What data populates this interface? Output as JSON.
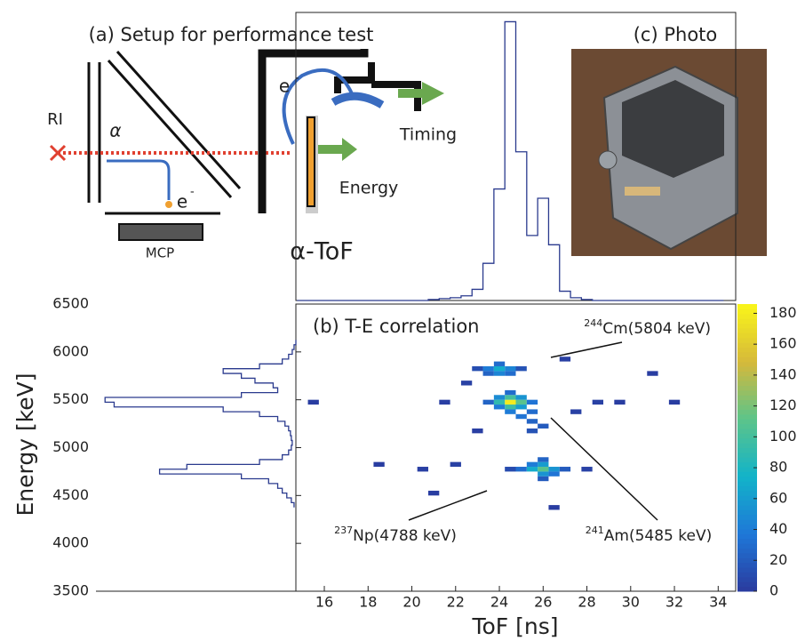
{
  "panel_a": {
    "title": "(a) Setup for performance test",
    "labels": {
      "ri": "RI",
      "alpha": "α",
      "electron_top": "e",
      "electron_top_sup": "-",
      "electron_bottom": "e",
      "electron_bottom_sup": "-",
      "mcp": "MCP",
      "timing": "Timing",
      "energy": "Energy",
      "detector": "α-ToF"
    }
  },
  "panel_c": {
    "title": "(c) Photo"
  },
  "chart_data": {
    "type": "heatmap",
    "title": "(b) T-E correlation",
    "x_label": "ToF [ns]",
    "y_label": "Energy [keV]",
    "xlim": [
      14.7,
      34.8
    ],
    "ylim": [
      3500,
      6500
    ],
    "xticks": [
      16,
      18,
      20,
      22,
      24,
      26,
      28,
      30,
      32,
      34
    ],
    "yticks": [
      3500,
      4000,
      4500,
      5000,
      5500,
      6000,
      6500
    ],
    "colorbar": {
      "zlim": [
        0,
        186
      ],
      "ticks": [
        0,
        20,
        40,
        60,
        80,
        100,
        120,
        140,
        160,
        180
      ],
      "colors": [
        "#2a3a9e",
        "#1f78d8",
        "#12b3c9",
        "#5cc48a",
        "#d6b93a",
        "#f9f51a"
      ]
    },
    "cells": {
      "x": [
        24.5,
        24.0,
        25.0,
        24.5,
        24.5,
        24.0,
        25.0,
        24.0,
        25.0,
        23.5,
        25.5,
        24.5,
        24.5,
        25.5,
        25.5,
        25.0,
        26.0,
        25.5,
        24.0,
        23.5,
        24.5,
        24.0,
        24.0,
        23.5,
        24.5,
        23.0,
        25.0,
        26.0,
        25.5,
        26.5,
        26.0,
        26.0,
        25.5,
        26.5,
        25.0,
        27.0,
        26.0,
        26.0,
        24.5,
        20.5,
        22.0,
        21.5,
        28.5,
        29.5,
        32.0,
        31.0,
        18.5,
        23.0,
        28.0,
        27.5,
        22.5,
        27.0,
        21.0,
        26.5,
        15.5
      ],
      "y": [
        5475,
        5475,
        5475,
        5525,
        5425,
        5525,
        5425,
        5425,
        5525,
        5475,
        5475,
        5575,
        5375,
        5375,
        5275,
        5325,
        5225,
        5175,
        5825,
        5825,
        5825,
        5775,
        5875,
        5775,
        5775,
        5825,
        5825,
        4775,
        4775,
        4775,
        4825,
        4725,
        4825,
        4725,
        4775,
        4775,
        4875,
        4675,
        4775,
        4775,
        4825,
        5475,
        5475,
        5475,
        5475,
        5775,
        4825,
        5175,
        4775,
        5375,
        5675,
        5925,
        4525,
        4375,
        5475
      ],
      "values": [
        180,
        90,
        110,
        100,
        95,
        50,
        60,
        40,
        55,
        25,
        35,
        30,
        40,
        30,
        25,
        35,
        20,
        15,
        70,
        40,
        45,
        45,
        30,
        25,
        30,
        12,
        15,
        110,
        70,
        55,
        60,
        55,
        40,
        35,
        30,
        20,
        25,
        20,
        10,
        3,
        4,
        3,
        4,
        2,
        2,
        2,
        2,
        3,
        5,
        4,
        4,
        3,
        2,
        2,
        2
      ]
    },
    "annotations": [
      {
        "isotope": "244",
        "label": "Cm(5804 keV)"
      },
      {
        "isotope": "241",
        "label": "Am(5485 keV)"
      },
      {
        "isotope": "237",
        "label": "Np(4788 keV)"
      }
    ],
    "tof_projection": {
      "ylim": [
        0,
        310
      ],
      "x": [
        15,
        15.5,
        16,
        16.5,
        17,
        17.5,
        18,
        18.5,
        19,
        19.5,
        20,
        20.5,
        21,
        21.5,
        22,
        22.5,
        23,
        23.5,
        24,
        24.5,
        25,
        25.5,
        26,
        26.5,
        27,
        27.5,
        28,
        28.5,
        29,
        29.5,
        30,
        30.5,
        31,
        31.5,
        32,
        32.5,
        33,
        33.5,
        34
      ],
      "values": [
        0,
        0,
        0,
        0,
        0,
        0,
        0,
        0,
        0,
        0,
        0,
        0,
        1,
        2,
        3,
        5,
        12,
        40,
        120,
        300,
        160,
        70,
        110,
        60,
        10,
        3,
        1,
        0,
        0,
        0,
        0,
        0,
        0,
        0,
        0,
        0,
        0,
        0,
        0
      ]
    },
    "energy_projection": {
      "xlim": [
        0,
        220
      ],
      "y": [
        4400,
        4450,
        4500,
        4550,
        4600,
        4650,
        4700,
        4750,
        4800,
        4850,
        4900,
        4950,
        5000,
        5050,
        5100,
        5150,
        5200,
        5250,
        5300,
        5350,
        5400,
        5450,
        5500,
        5550,
        5600,
        5650,
        5700,
        5750,
        5800,
        5850,
        5900,
        5950,
        6000,
        6050,
        6100
      ],
      "values": [
        2,
        5,
        10,
        15,
        20,
        30,
        60,
        150,
        120,
        40,
        15,
        8,
        5,
        4,
        5,
        6,
        8,
        12,
        20,
        40,
        80,
        200,
        210,
        60,
        20,
        25,
        45,
        60,
        80,
        40,
        15,
        8,
        4,
        2,
        0
      ]
    }
  }
}
